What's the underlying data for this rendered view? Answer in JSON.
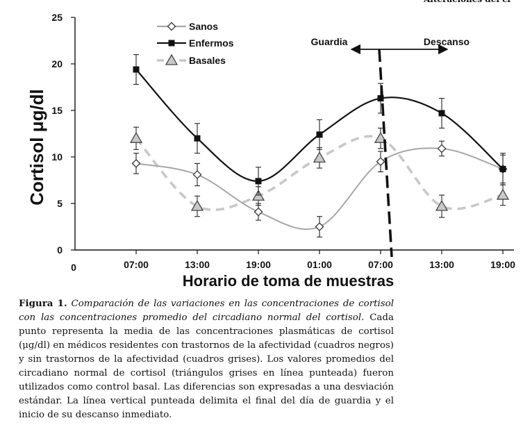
{
  "page": {
    "top_fragment": "Alteraciones del ci"
  },
  "caption": {
    "label": "Figura 1.",
    "italic": "Comparación de las variaciones en las concentraciones de cortisol con las concentraciones promedio del circadiano normal del cortisol.",
    "body": "Cada punto representa la media de las concentraciones plasmáticas de cortisol (μg/dl) en médicos residentes con trastornos de la afectividad (cuadros negros) y sin trastornos de la afectividad (cuadros grises). Los valores promedios del circadiano normal de cortisol (triángulos grises en línea punteada) fueron utilizados como control basal. Las diferencias son expresadas a una desviación estándar. La línea vertical punteada delimita el final del día de guardia y el inicio de su descanso inmediato."
  },
  "chart_data": {
    "type": "line",
    "xlabel": "Horario de toma de muestras",
    "ylabel": "Cortisol μg/dl",
    "x_origin_label": "0",
    "categories": [
      "07:00",
      "13:00",
      "19:00",
      "01:00",
      "07:00",
      "13:00",
      "19:00"
    ],
    "ylim": [
      0,
      25
    ],
    "yticks": [
      0,
      5,
      10,
      15,
      20,
      25
    ],
    "grid": false,
    "legend_position": "top-left",
    "series": [
      {
        "name": "Sanos",
        "values": [
          9.3,
          8.1,
          4.1,
          2.5,
          9.5,
          10.9,
          8.7
        ],
        "errors": [
          1.1,
          1.2,
          0.9,
          1.1,
          1.1,
          0.8,
          1.5
        ],
        "color": "#a6a6a6",
        "marker": "diamond",
        "line": "solid"
      },
      {
        "name": "Enfermos",
        "values": [
          19.4,
          12.0,
          7.4,
          12.4,
          16.3,
          14.7,
          8.7
        ],
        "errors": [
          1.6,
          1.6,
          1.5,
          1.6,
          1.6,
          1.6,
          1.7
        ],
        "color": "#111111",
        "marker": "square",
        "line": "solid"
      },
      {
        "name": "Basales",
        "values": [
          12.0,
          4.7,
          5.8,
          9.9,
          12.0,
          4.7,
          5.9
        ],
        "errors": [
          1.2,
          1.1,
          1.0,
          1.1,
          1.1,
          1.2,
          1.1
        ],
        "color": "#c8c8c8",
        "marker": "triangle",
        "line": "dashed"
      }
    ],
    "annotations": {
      "left_label": "Guardia",
      "right_label": "Descanso",
      "divider_after_category": 4
    }
  }
}
